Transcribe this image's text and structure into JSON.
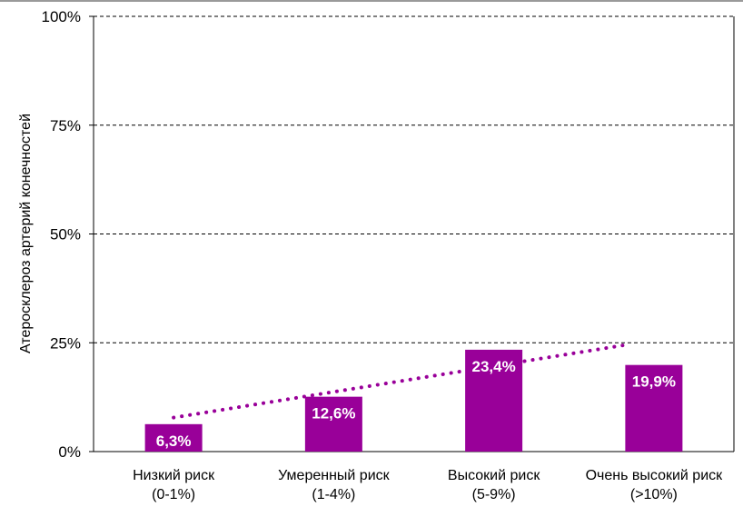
{
  "chart_data": {
    "type": "bar",
    "title": "",
    "xlabel": "",
    "ylabel": "Атеросклероз артерий конечностей",
    "categories": [
      [
        "Низкий риск",
        "(0-1%)"
      ],
      [
        "Умеренный риск",
        "(1-4%)"
      ],
      [
        "Высокий риск",
        "(5-9%)"
      ],
      [
        "Очень высокий риск",
        "(>10%)"
      ]
    ],
    "values": [
      6.3,
      12.6,
      23.4,
      19.9
    ],
    "value_labels": [
      "6,3%",
      "12,6%",
      "23,4%",
      "19,9%"
    ],
    "ylim": [
      0,
      100
    ],
    "yticks": [
      0,
      25,
      50,
      75,
      100
    ],
    "ytick_labels": [
      "0%",
      "25%",
      "50%",
      "75%",
      "100%"
    ],
    "grid": true,
    "trendline": {
      "style": "dotted",
      "type": "linear"
    },
    "colors": {
      "bar": "#990099",
      "trend": "#990099",
      "bar_label": "#ffffff",
      "grid": "#000000"
    }
  }
}
